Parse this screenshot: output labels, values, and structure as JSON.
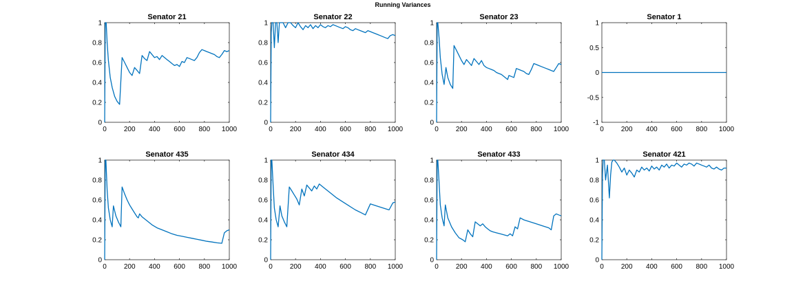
{
  "figure_title": "Running Variances",
  "line_color": "#0072bd",
  "chart_data": [
    {
      "type": "line",
      "title": "Senator 21",
      "xlim": [
        0,
        1000
      ],
      "ylim": [
        0,
        1
      ],
      "xticks": [
        "0",
        "200",
        "400",
        "600",
        "800",
        "1000"
      ],
      "yticks": [
        "0",
        "0.2",
        "0.4",
        "0.6",
        "0.8",
        "1"
      ],
      "series": [
        {
          "x": [
            0,
            5,
            12,
            20,
            30,
            45,
            60,
            80,
            100,
            120,
            140,
            160,
            180,
            200,
            220,
            240,
            260,
            280,
            300,
            320,
            340,
            360,
            380,
            400,
            420,
            440,
            460,
            480,
            500,
            520,
            540,
            560,
            580,
            600,
            620,
            640,
            660,
            680,
            700,
            720,
            740,
            760,
            780,
            800,
            820,
            840,
            860,
            880,
            900,
            920,
            940,
            960,
            980,
            1000
          ],
          "y": [
            0,
            1,
            1,
            0.8,
            0.62,
            0.45,
            0.35,
            0.26,
            0.21,
            0.18,
            0.65,
            0.6,
            0.55,
            0.5,
            0.47,
            0.55,
            0.52,
            0.49,
            0.67,
            0.64,
            0.62,
            0.71,
            0.68,
            0.65,
            0.66,
            0.63,
            0.67,
            0.65,
            0.63,
            0.61,
            0.59,
            0.57,
            0.58,
            0.56,
            0.61,
            0.6,
            0.65,
            0.64,
            0.63,
            0.62,
            0.65,
            0.7,
            0.73,
            0.72,
            0.71,
            0.7,
            0.69,
            0.68,
            0.66,
            0.65,
            0.68,
            0.72,
            0.71,
            0.72
          ]
        }
      ]
    },
    {
      "type": "line",
      "title": "Senator 22",
      "xlim": [
        0,
        1000
      ],
      "ylim": [
        0,
        1
      ],
      "xticks": [
        "0",
        "200",
        "400",
        "600",
        "800",
        "1000"
      ],
      "yticks": [
        "0",
        "0.2",
        "0.4",
        "0.6",
        "0.8",
        "1"
      ],
      "series": [
        {
          "x": [
            0,
            5,
            10,
            20,
            30,
            40,
            50,
            60,
            70,
            80,
            100,
            120,
            140,
            160,
            180,
            200,
            220,
            240,
            260,
            280,
            300,
            320,
            340,
            360,
            380,
            400,
            420,
            440,
            460,
            480,
            500,
            520,
            540,
            560,
            580,
            600,
            620,
            640,
            660,
            680,
            700,
            720,
            740,
            760,
            780,
            800,
            820,
            840,
            860,
            880,
            900,
            920,
            940,
            960,
            980,
            1000
          ],
          "y": [
            0,
            0.9,
            1,
            1,
            0.75,
            1,
            1,
            0.8,
            1,
            1,
            1,
            0.95,
            1,
            1,
            0.97,
            0.95,
            1,
            0.96,
            0.93,
            0.97,
            0.95,
            0.98,
            0.94,
            0.97,
            0.95,
            0.98,
            0.96,
            0.95,
            0.97,
            0.96,
            0.98,
            0.97,
            0.96,
            0.95,
            0.94,
            0.96,
            0.95,
            0.93,
            0.92,
            0.94,
            0.93,
            0.92,
            0.91,
            0.9,
            0.92,
            0.91,
            0.9,
            0.89,
            0.88,
            0.87,
            0.86,
            0.85,
            0.84,
            0.87,
            0.88,
            0.87
          ]
        }
      ]
    },
    {
      "type": "line",
      "title": "Senator 23",
      "xlim": [
        0,
        1000
      ],
      "ylim": [
        0,
        1
      ],
      "xticks": [
        "0",
        "200",
        "400",
        "600",
        "800",
        "1000"
      ],
      "yticks": [
        "0",
        "0.2",
        "0.4",
        "0.6",
        "0.8",
        "1"
      ],
      "series": [
        {
          "x": [
            0,
            5,
            10,
            20,
            30,
            45,
            60,
            75,
            90,
            110,
            130,
            140,
            160,
            180,
            200,
            220,
            240,
            260,
            280,
            300,
            320,
            340,
            360,
            380,
            400,
            420,
            440,
            460,
            480,
            500,
            520,
            540,
            560,
            570,
            580,
            600,
            620,
            640,
            660,
            680,
            700,
            720,
            740,
            760,
            780,
            800,
            820,
            840,
            860,
            880,
            900,
            920,
            940,
            960,
            980,
            1000
          ],
          "y": [
            0,
            1,
            1,
            0.85,
            0.65,
            0.48,
            0.38,
            0.55,
            0.45,
            0.38,
            0.34,
            0.77,
            0.72,
            0.67,
            0.62,
            0.58,
            0.63,
            0.6,
            0.57,
            0.64,
            0.61,
            0.58,
            0.62,
            0.57,
            0.55,
            0.54,
            0.53,
            0.52,
            0.5,
            0.49,
            0.48,
            0.46,
            0.44,
            0.43,
            0.47,
            0.46,
            0.45,
            0.54,
            0.53,
            0.52,
            0.51,
            0.49,
            0.48,
            0.53,
            0.59,
            0.58,
            0.57,
            0.56,
            0.55,
            0.54,
            0.53,
            0.52,
            0.51,
            0.55,
            0.59,
            0.58
          ]
        }
      ]
    },
    {
      "type": "line",
      "title": "Senator 1",
      "xlim": [
        0,
        1000
      ],
      "ylim": [
        -1,
        1
      ],
      "xticks": [
        "0",
        "200",
        "400",
        "600",
        "800",
        "1000"
      ],
      "yticks": [
        "-1",
        "-0.5",
        "0",
        "0.5",
        "1"
      ],
      "series": [
        {
          "x": [
            0,
            1000
          ],
          "y": [
            0,
            0
          ]
        }
      ]
    },
    {
      "type": "line",
      "title": "Senator 435",
      "xlim": [
        0,
        1000
      ],
      "ylim": [
        0,
        1
      ],
      "xticks": [
        "0",
        "200",
        "400",
        "600",
        "800",
        "1000"
      ],
      "yticks": [
        "0",
        "0.2",
        "0.4",
        "0.6",
        "0.8",
        "1"
      ],
      "series": [
        {
          "x": [
            0,
            5,
            10,
            20,
            30,
            45,
            60,
            70,
            90,
            110,
            130,
            140,
            160,
            180,
            200,
            220,
            240,
            260,
            270,
            280,
            300,
            340,
            380,
            420,
            460,
            500,
            540,
            580,
            620,
            660,
            700,
            740,
            780,
            820,
            860,
            900,
            940,
            960,
            980,
            1000
          ],
          "y": [
            0,
            1,
            1,
            0.7,
            0.52,
            0.4,
            0.33,
            0.54,
            0.44,
            0.38,
            0.33,
            0.73,
            0.66,
            0.6,
            0.55,
            0.51,
            0.47,
            0.43,
            0.42,
            0.46,
            0.43,
            0.39,
            0.35,
            0.32,
            0.3,
            0.28,
            0.26,
            0.245,
            0.235,
            0.225,
            0.215,
            0.205,
            0.195,
            0.185,
            0.178,
            0.17,
            0.165,
            0.27,
            0.29,
            0.3
          ]
        }
      ]
    },
    {
      "type": "line",
      "title": "Senator 434",
      "xlim": [
        0,
        1000
      ],
      "ylim": [
        0,
        1
      ],
      "xticks": [
        "0",
        "200",
        "400",
        "600",
        "800",
        "1000"
      ],
      "yticks": [
        "0",
        "0.2",
        "0.4",
        "0.6",
        "0.8",
        "1"
      ],
      "series": [
        {
          "x": [
            0,
            5,
            10,
            20,
            30,
            45,
            60,
            75,
            90,
            110,
            130,
            150,
            170,
            190,
            210,
            230,
            250,
            270,
            290,
            310,
            330,
            350,
            370,
            390,
            430,
            480,
            530,
            580,
            630,
            680,
            730,
            760,
            800,
            850,
            900,
            950,
            980,
            1000
          ],
          "y": [
            0,
            1,
            1,
            0.75,
            0.52,
            0.4,
            0.33,
            0.54,
            0.44,
            0.38,
            0.33,
            0.73,
            0.69,
            0.65,
            0.61,
            0.55,
            0.71,
            0.64,
            0.75,
            0.72,
            0.69,
            0.74,
            0.71,
            0.76,
            0.72,
            0.67,
            0.62,
            0.58,
            0.54,
            0.5,
            0.47,
            0.45,
            0.56,
            0.54,
            0.52,
            0.5,
            0.57,
            0.58
          ]
        }
      ]
    },
    {
      "type": "line",
      "title": "Senator 433",
      "xlim": [
        0,
        1000
      ],
      "ylim": [
        0,
        1
      ],
      "xticks": [
        "0",
        "200",
        "400",
        "600",
        "800",
        "1000"
      ],
      "yticks": [
        "0",
        "0.2",
        "0.4",
        "0.6",
        "0.8",
        "1"
      ],
      "series": [
        {
          "x": [
            0,
            5,
            10,
            20,
            30,
            45,
            60,
            70,
            90,
            120,
            150,
            180,
            210,
            230,
            250,
            270,
            290,
            310,
            330,
            350,
            370,
            390,
            410,
            430,
            450,
            480,
            510,
            540,
            570,
            590,
            610,
            630,
            650,
            670,
            700,
            750,
            800,
            850,
            900,
            920,
            940,
            960,
            980,
            1000
          ],
          "y": [
            0,
            1,
            1,
            0.78,
            0.55,
            0.42,
            0.34,
            0.55,
            0.42,
            0.33,
            0.27,
            0.22,
            0.2,
            0.18,
            0.3,
            0.26,
            0.23,
            0.38,
            0.36,
            0.34,
            0.36,
            0.33,
            0.31,
            0.29,
            0.28,
            0.27,
            0.26,
            0.25,
            0.24,
            0.26,
            0.24,
            0.33,
            0.31,
            0.42,
            0.4,
            0.38,
            0.36,
            0.34,
            0.32,
            0.3,
            0.44,
            0.46,
            0.45,
            0.44
          ]
        }
      ]
    },
    {
      "type": "line",
      "title": "Senator 421",
      "xlim": [
        0,
        1000
      ],
      "ylim": [
        0,
        1
      ],
      "xticks": [
        "0",
        "200",
        "400",
        "600",
        "800",
        "1000"
      ],
      "yticks": [
        "0",
        "0.2",
        "0.4",
        "0.6",
        "0.8",
        "1"
      ],
      "series": [
        {
          "x": [
            0,
            5,
            10,
            20,
            30,
            45,
            60,
            70,
            80,
            90,
            100,
            120,
            140,
            160,
            180,
            200,
            220,
            240,
            260,
            280,
            300,
            320,
            340,
            360,
            380,
            400,
            420,
            440,
            460,
            480,
            500,
            520,
            540,
            560,
            580,
            600,
            620,
            640,
            660,
            680,
            700,
            720,
            740,
            760,
            780,
            800,
            820,
            840,
            860,
            880,
            900,
            920,
            940,
            960,
            980,
            1000
          ],
          "y": [
            0,
            0.85,
            1,
            1,
            0.8,
            0.95,
            0.62,
            0.85,
            0.98,
            1,
            1,
            0.97,
            0.93,
            0.88,
            0.92,
            0.85,
            0.9,
            0.87,
            0.83,
            0.9,
            0.88,
            0.93,
            0.9,
            0.92,
            0.89,
            0.94,
            0.91,
            0.93,
            0.9,
            0.95,
            0.93,
            0.96,
            0.92,
            0.95,
            0.94,
            0.97,
            0.95,
            0.93,
            0.96,
            0.95,
            0.97,
            0.96,
            0.94,
            0.97,
            0.96,
            0.95,
            0.94,
            0.93,
            0.95,
            0.92,
            0.91,
            0.93,
            0.91,
            0.9,
            0.92,
            0.92
          ]
        }
      ]
    }
  ]
}
